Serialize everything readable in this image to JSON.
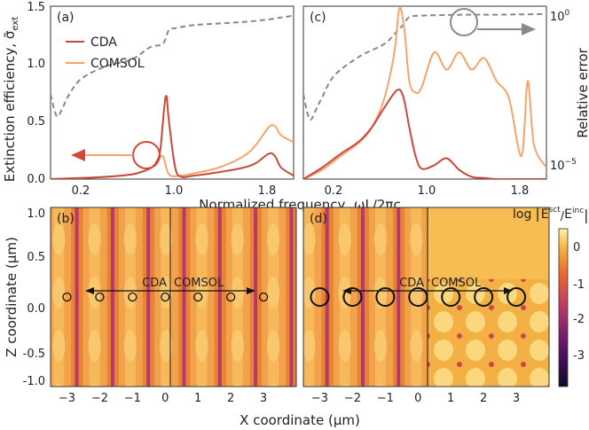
{
  "figure": {
    "panel_a": "(a)",
    "panel_b": "(b)",
    "panel_c": "(c)",
    "panel_d": "(d)",
    "top_ylabel": "Extinction efficiency, σ̃",
    "top_ylabel_sub": "ext",
    "top_xlabel": "Normalized frequency, ωL/2πc",
    "right_ylabel": "Relative error",
    "bottom_ylabel": "Z coordinate (μm)",
    "bottom_xlabel": "X coordinate (μm)",
    "colorbar_title_prefix": "log",
    "colorbar_num": "sct",
    "colorbar_den": "inc",
    "colorbar_E": "E",
    "field_left_label": "CDA",
    "field_right_label": "COMSOL",
    "colors": {
      "cda": "#c8493a",
      "comsol": "#f5a56b",
      "error": "#777777",
      "arrow_red": "#d04a36",
      "arrow_gray": "#8a8a8a"
    }
  },
  "chart_data": [
    {
      "type": "line",
      "panel": "(a)",
      "xlabel": "Normalized frequency, ωL/2πc",
      "ylabel": "Extinction efficiency, σ̃ext",
      "xlim": [
        0.05,
        2.0
      ],
      "ylim": [
        0,
        1.5
      ],
      "xticks": [
        "0.2",
        "1.0",
        "1.8"
      ],
      "yticks": [
        "0.0",
        "0.5",
        "1.0",
        "1.5"
      ],
      "legend": [
        "CDA",
        "COMSOL"
      ],
      "legend_position": "top-left",
      "series": [
        {
          "name": "CDA",
          "x": [
            0.05,
            0.3,
            0.5,
            0.7,
            0.8,
            0.86,
            0.9,
            0.93,
            0.96,
            0.98,
            1.0,
            1.05,
            1.1,
            1.2,
            1.4,
            1.6,
            1.7,
            1.8,
            1.85,
            1.9,
            2.0
          ],
          "y": [
            0.0,
            0.01,
            0.02,
            0.04,
            0.07,
            0.1,
            0.15,
            0.25,
            0.6,
            0.72,
            0.5,
            0.1,
            0.02,
            0.03,
            0.06,
            0.1,
            0.14,
            0.22,
            0.2,
            0.1,
            0.03
          ]
        },
        {
          "name": "COMSOL",
          "x": [
            0.05,
            0.3,
            0.5,
            0.7,
            0.8,
            0.86,
            0.9,
            0.95,
            1.0,
            1.1,
            1.2,
            1.4,
            1.6,
            1.7,
            1.8,
            1.85,
            1.9,
            2.0
          ],
          "y": [
            0.0,
            0.01,
            0.02,
            0.04,
            0.07,
            0.1,
            0.14,
            0.2,
            0.04,
            0.03,
            0.05,
            0.1,
            0.2,
            0.3,
            0.45,
            0.46,
            0.38,
            0.32
          ]
        },
        {
          "name": "Relative error",
          "axis": "right-log",
          "x": [
            0.05,
            0.1,
            0.15,
            0.2,
            0.3,
            0.5,
            0.7,
            0.85,
            0.95,
            1.0,
            1.05,
            1.2,
            1.4,
            1.6,
            1.8,
            1.9,
            2.0
          ],
          "y": [
            -2.5,
            -3.2,
            -2.9,
            -2.5,
            -2.0,
            -1.6,
            -1.4,
            -1.0,
            -0.9,
            -0.45,
            -0.4,
            -0.3,
            -0.25,
            -0.2,
            -0.12,
            -0.06,
            0.0
          ]
        }
      ]
    },
    {
      "type": "line",
      "panel": "(c)",
      "xlim": [
        0.05,
        2.0
      ],
      "ylim": [
        0,
        1.5
      ],
      "xticks": [
        "0.2",
        "1.0",
        "1.8"
      ],
      "yticks_right": [
        "10^-5",
        "10^0"
      ],
      "series": [
        {
          "name": "CDA",
          "x": [
            0.05,
            0.2,
            0.35,
            0.5,
            0.6,
            0.7,
            0.8,
            0.85,
            0.9,
            0.95,
            1.0,
            1.1,
            1.2,
            1.3,
            1.4,
            1.5,
            1.6,
            1.8,
            2.0
          ],
          "y": [
            0.0,
            0.1,
            0.22,
            0.33,
            0.45,
            0.62,
            0.77,
            0.72,
            0.45,
            0.2,
            0.09,
            0.12,
            0.18,
            0.08,
            0.02,
            0.01,
            0.0,
            0.0,
            0.0
          ]
        },
        {
          "name": "COMSOL",
          "x": [
            0.05,
            0.2,
            0.35,
            0.5,
            0.6,
            0.7,
            0.78,
            0.82,
            0.86,
            0.9,
            0.95,
            1.0,
            1.1,
            1.2,
            1.3,
            1.4,
            1.5,
            1.6,
            1.7,
            1.8,
            1.85,
            1.9,
            2.0
          ],
          "y": [
            0.0,
            0.08,
            0.2,
            0.32,
            0.45,
            0.7,
            1.1,
            1.48,
            1.3,
            0.85,
            0.75,
            0.8,
            1.1,
            0.95,
            1.1,
            0.95,
            1.05,
            0.85,
            0.7,
            0.2,
            0.85,
            0.3,
            0.1
          ]
        },
        {
          "name": "Relative error",
          "axis": "right-log",
          "x": [
            0.05,
            0.1,
            0.15,
            0.2,
            0.3,
            0.5,
            0.7,
            0.8,
            0.85,
            0.9,
            1.0,
            1.2,
            1.4,
            1.6,
            1.8,
            2.0
          ],
          "y": [
            -2.5,
            -3.3,
            -3.0,
            -2.6,
            -1.9,
            -1.3,
            -0.9,
            -0.5,
            -0.3,
            -0.05,
            0.0,
            0.02,
            0.03,
            0.03,
            0.04,
            0.05
          ]
        }
      ]
    },
    {
      "type": "heatmap",
      "panel": "(b)",
      "xlabel": "X coordinate (μm)",
      "ylabel": "Z coordinate (μm)",
      "xlim": [
        -3.5,
        4.0
      ],
      "ylim": [
        -1.1,
        1.1
      ],
      "xticks": [
        "-3",
        "-2",
        "-1",
        "0",
        "1",
        "2",
        "3"
      ],
      "yticks": [
        "1.0",
        "0.5",
        "0.0",
        "-0.5",
        "-1.0"
      ],
      "particles_x": [
        -3,
        -2,
        -1,
        0,
        1,
        2,
        3
      ],
      "particle_radius": "small"
    },
    {
      "type": "heatmap",
      "panel": "(d)",
      "xlim": [
        -3.5,
        4.0
      ],
      "ylim": [
        -1.1,
        1.1
      ],
      "xticks": [
        "-3",
        "-2",
        "-1",
        "0",
        "1",
        "2",
        "3"
      ],
      "particles_x": [
        -3,
        -2,
        -1,
        0,
        1,
        2,
        3
      ],
      "particle_radius": "large",
      "colorbar": {
        "min": -4,
        "max": 0.3,
        "ticks": [
          "0",
          "-1",
          "-2",
          "-3"
        ]
      }
    }
  ]
}
